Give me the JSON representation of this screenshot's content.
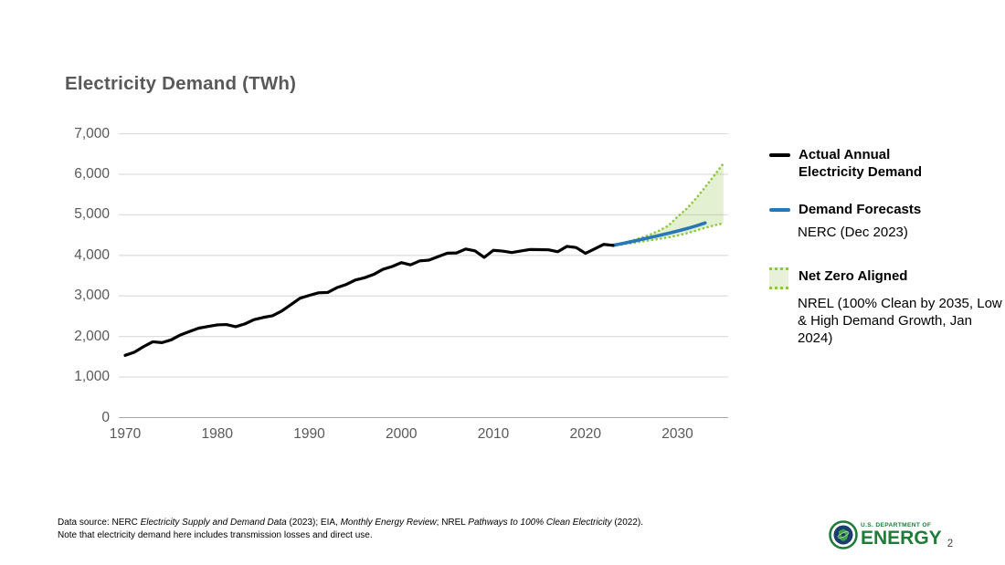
{
  "slide": {
    "title": "Electricity Demand (TWh)",
    "page_number": "2"
  },
  "chart_data": {
    "type": "line",
    "title": "Electricity Demand (TWh)",
    "ylabel": "Electricity Demand (TWh)",
    "ylim": [
      0,
      7000
    ],
    "xlim": [
      1969.3,
      2035.5
    ],
    "grid": "horizontal",
    "axis_colors": {
      "gridline": "#d9d9d9",
      "axis_line": "#a6a6a6",
      "tick_label": "#595959"
    },
    "y_ticks": {
      "values": [
        0,
        1000,
        2000,
        3000,
        4000,
        5000,
        6000,
        7000
      ],
      "labels": [
        "0",
        "1,000",
        "2,000",
        "3,000",
        "4,000",
        "5,000",
        "6,000",
        "7,000"
      ]
    },
    "x_ticks": {
      "values": [
        1970,
        1980,
        1990,
        2000,
        2010,
        2020,
        2030
      ],
      "labels": [
        "1970",
        "1980",
        "1990",
        "2000",
        "2010",
        "2020",
        "2030"
      ]
    },
    "series": [
      {
        "key": "actual",
        "name": "Actual Annual Electricity Demand",
        "color": "#000000",
        "style": "solid",
        "width": 3.2,
        "x": [
          1970,
          1971,
          1972,
          1973,
          1974,
          1975,
          1976,
          1977,
          1978,
          1979,
          1980,
          1981,
          1982,
          1983,
          1984,
          1985,
          1986,
          1987,
          1988,
          1989,
          1990,
          1991,
          1992,
          1993,
          1994,
          1995,
          1996,
          1997,
          1998,
          1999,
          2000,
          2001,
          2002,
          2003,
          2004,
          2005,
          2006,
          2007,
          2008,
          2009,
          2010,
          2011,
          2012,
          2013,
          2014,
          2015,
          2016,
          2017,
          2018,
          2019,
          2020,
          2021,
          2022,
          2023
        ],
        "values": [
          1535,
          1613,
          1750,
          1870,
          1849,
          1918,
          2038,
          2124,
          2206,
          2247,
          2286,
          2295,
          2241,
          2310,
          2416,
          2470,
          2511,
          2626,
          2784,
          2944,
          3013,
          3076,
          3086,
          3204,
          3281,
          3391,
          3448,
          3530,
          3656,
          3725,
          3821,
          3766,
          3865,
          3883,
          3971,
          4055,
          4060,
          4157,
          4112,
          3951,
          4125,
          4106,
          4070,
          4110,
          4145,
          4141,
          4137,
          4090,
          4222,
          4194,
          4050,
          4160,
          4271,
          4247
        ]
      },
      {
        "key": "nerc_forecast",
        "name": "Demand Forecasts — NERC (Dec 2023)",
        "color": "#2878b8",
        "style": "solid",
        "width": 3.6,
        "x": [
          2023,
          2024,
          2025,
          2026,
          2027,
          2028,
          2029,
          2030,
          2031,
          2032,
          2033
        ],
        "values": [
          4247,
          4290,
          4340,
          4390,
          4440,
          4490,
          4545,
          4600,
          4660,
          4725,
          4800
        ]
      },
      {
        "key": "nz_low",
        "name": "Net Zero Aligned — NREL Low Demand Growth",
        "color": "#8dc63f",
        "style": "dotted",
        "width": 2.6,
        "x": [
          2023,
          2024,
          2025,
          2026,
          2027,
          2028,
          2029,
          2030,
          2031,
          2032,
          2033,
          2034,
          2035
        ],
        "values": [
          4247,
          4270,
          4300,
          4335,
          4370,
          4405,
          4445,
          4490,
          4545,
          4610,
          4680,
          4740,
          4790
        ]
      },
      {
        "key": "nz_high",
        "name": "Net Zero Aligned — NREL High Demand Growth",
        "color": "#8dc63f",
        "style": "dotted",
        "width": 2.6,
        "x": [
          2023,
          2024,
          2025,
          2026,
          2027,
          2028,
          2029,
          2030,
          2031,
          2032,
          2033,
          2034,
          2035
        ],
        "values": [
          4247,
          4300,
          4360,
          4430,
          4510,
          4610,
          4730,
          4950,
          5150,
          5400,
          5680,
          5970,
          6270
        ]
      }
    ],
    "band": {
      "name": "Net Zero Aligned range",
      "between": [
        "nz_low",
        "nz_high"
      ],
      "fill": "#8dc63f",
      "opacity": 0.24
    }
  },
  "legend": {
    "items": [
      {
        "label": "Actual Annual Electricity Demand",
        "sublabel": "",
        "swatch": "black-line"
      },
      {
        "label": "Demand Forecasts",
        "sublabel": "NERC (Dec 2023)",
        "swatch": "blue-line"
      },
      {
        "label": "Net Zero Aligned",
        "sublabel": "NREL (100% Clean by 2035, Low & High Demand Growth, Jan 2024)",
        "swatch": "green-dotted-area"
      }
    ]
  },
  "footer": {
    "source_segments": [
      {
        "text": "Data source: NERC ",
        "italic": false
      },
      {
        "text": "Electricity Supply and Demand Data",
        "italic": true
      },
      {
        "text": " (2023); EIA, ",
        "italic": false
      },
      {
        "text": "Monthly Energy Review",
        "italic": true
      },
      {
        "text": "; NREL ",
        "italic": false
      },
      {
        "text": "Pathways to 100% Clean Electricity",
        "italic": true
      },
      {
        "text": " (2022).",
        "italic": false
      }
    ],
    "note": "Note that electricity demand here includes transmission losses and direct use."
  },
  "logo": {
    "department_line": "U.S. DEPARTMENT OF",
    "agency": "ENERGY",
    "green": "#1e7c38",
    "navy": "#1c3e6e"
  }
}
